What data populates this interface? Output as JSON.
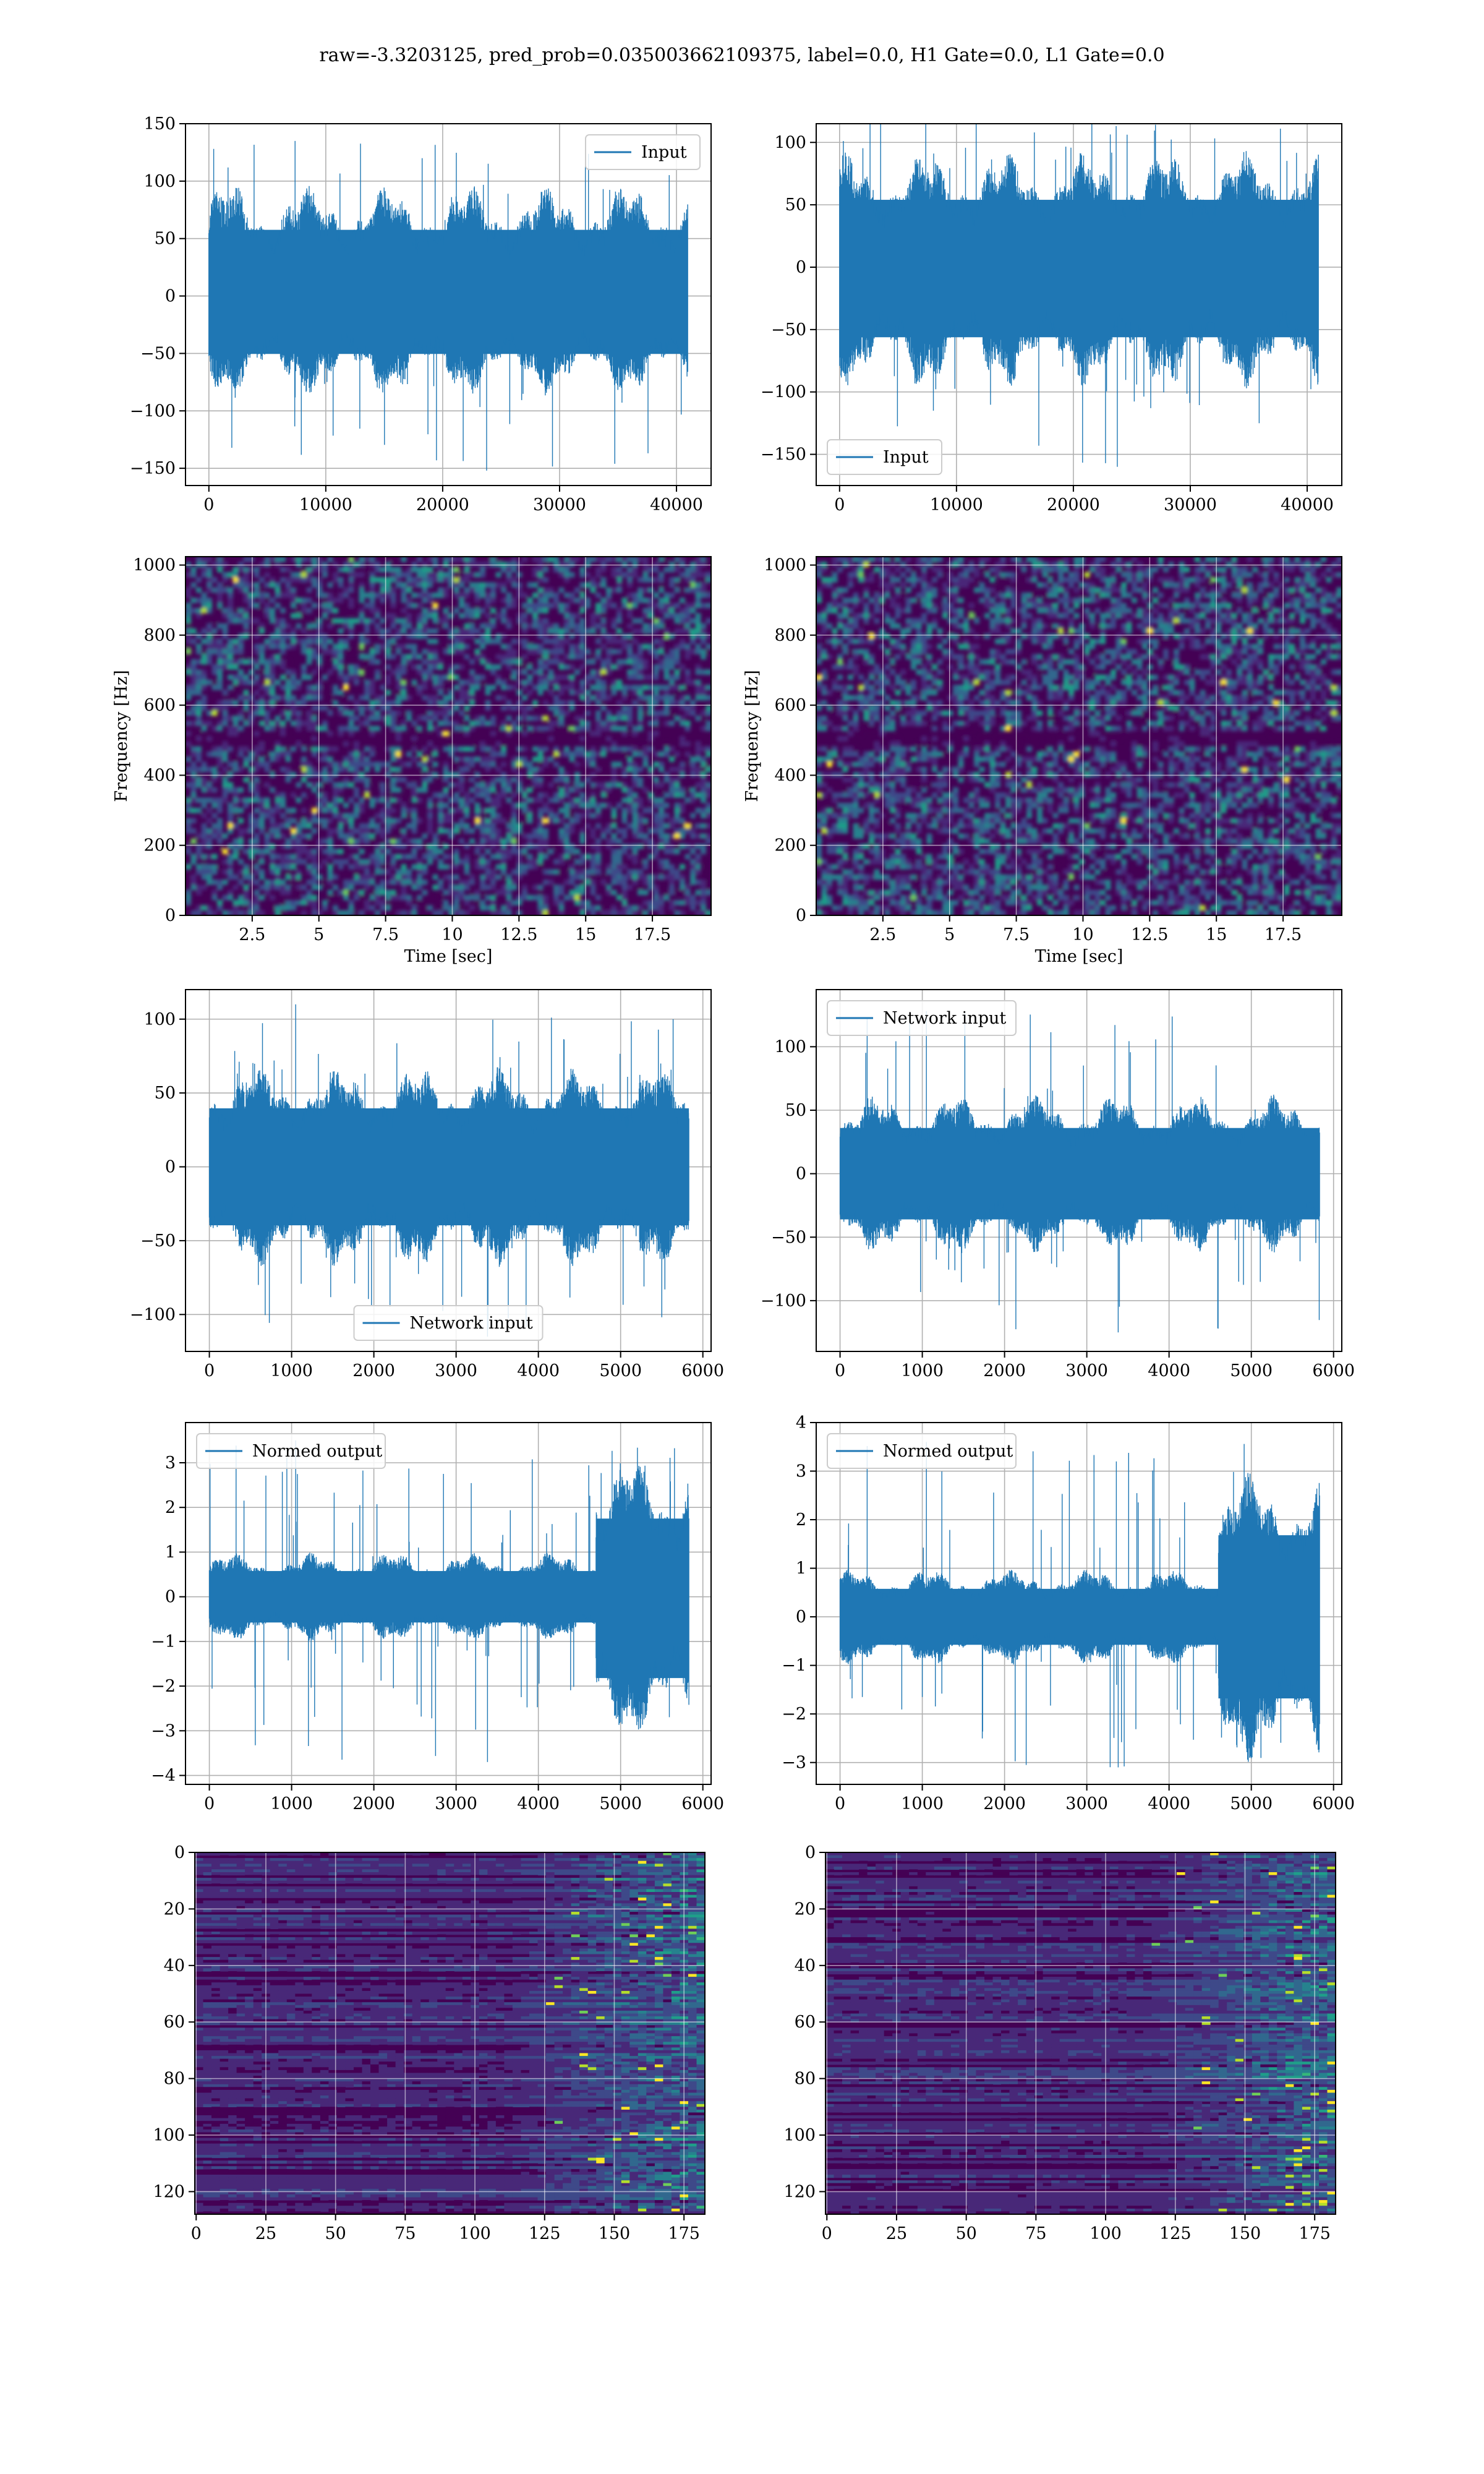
{
  "figure": {
    "title": "raw=-3.3203125, pred_prob=0.035003662109375, label=0.0, H1 Gate=0.0, L1 Gate=0.0"
  },
  "colors": {
    "line": "#1f77b4",
    "grid": "#b0b0b0",
    "viridis": [
      "#440154",
      "#482878",
      "#3e4989",
      "#31688e",
      "#26828e",
      "#1f9e89",
      "#35b779",
      "#6ece58",
      "#b5de2b",
      "#fde725"
    ]
  },
  "chart_data": [
    {
      "id": "h1-input",
      "type": "line",
      "title": "",
      "xlabel": "",
      "ylabel": "",
      "xlim": [
        -2000,
        42960
      ],
      "ylim": [
        -165,
        150
      ],
      "xticks": [
        0,
        10000,
        20000,
        30000,
        40000
      ],
      "yticks": [
        -150,
        -100,
        -50,
        0,
        50,
        100,
        150
      ],
      "grid": true,
      "legend": "upper right",
      "series": [
        {
          "name": "Input",
          "x_range": [
            0,
            40960
          ],
          "envelope_high": 80,
          "envelope_low": -70,
          "spike_high": 135,
          "spike_low": -152
        }
      ]
    },
    {
      "id": "l1-input",
      "type": "line",
      "title": "",
      "xlabel": "",
      "ylabel": "",
      "xlim": [
        -2000,
        42960
      ],
      "ylim": [
        -175,
        115
      ],
      "xticks": [
        0,
        10000,
        20000,
        30000,
        40000
      ],
      "yticks": [
        -150,
        -100,
        -50,
        0,
        50,
        100
      ],
      "grid": true,
      "legend": "lower left",
      "series": [
        {
          "name": "Input",
          "x_range": [
            0,
            40960
          ],
          "envelope_high": 75,
          "envelope_low": -78,
          "spike_high": 122,
          "spike_low": -160
        }
      ]
    },
    {
      "id": "h1-spectrogram",
      "type": "heatmap",
      "title": "",
      "xlabel": "Time [sec]",
      "ylabel": "Frequency [Hz]",
      "xlim": [
        0,
        19.7
      ],
      "ylim": [
        0,
        1024
      ],
      "xticks": [
        2.5,
        5.0,
        7.5,
        10.0,
        12.5,
        15.0,
        17.5
      ],
      "yticks": [
        0,
        200,
        400,
        600,
        800,
        1000
      ],
      "grid": true,
      "colormap": "viridis",
      "dark_band_hz": 500
    },
    {
      "id": "l1-spectrogram",
      "type": "heatmap",
      "title": "",
      "xlabel": "Time [sec]",
      "ylabel": "Frequency [Hz]",
      "xlim": [
        0,
        19.7
      ],
      "ylim": [
        0,
        1024
      ],
      "xticks": [
        2.5,
        5.0,
        7.5,
        10.0,
        12.5,
        15.0,
        17.5
      ],
      "yticks": [
        0,
        200,
        400,
        600,
        800,
        1000
      ],
      "grid": true,
      "colormap": "viridis",
      "dark_band_hz": 500
    },
    {
      "id": "h1-network-input",
      "type": "line",
      "title": "",
      "xlabel": "",
      "ylabel": "",
      "xlim": [
        -290,
        6100
      ],
      "ylim": [
        -125,
        120
      ],
      "xticks": [
        0,
        1000,
        2000,
        3000,
        4000,
        5000,
        6000
      ],
      "yticks": [
        -100,
        -50,
        0,
        50,
        100
      ],
      "grid": true,
      "legend": "lower center",
      "series": [
        {
          "name": "Network input",
          "x_range": [
            0,
            5830
          ],
          "envelope_high": 55,
          "envelope_low": -55,
          "spike_high": 110,
          "spike_low": -115
        }
      ]
    },
    {
      "id": "l1-network-input",
      "type": "line",
      "title": "",
      "xlabel": "",
      "ylabel": "",
      "xlim": [
        -290,
        6100
      ],
      "ylim": [
        -140,
        145
      ],
      "xticks": [
        0,
        1000,
        2000,
        3000,
        4000,
        5000,
        6000
      ],
      "yticks": [
        -100,
        -50,
        0,
        50,
        100
      ],
      "grid": true,
      "legend": "upper left",
      "series": [
        {
          "name": "Network input",
          "x_range": [
            0,
            5830
          ],
          "envelope_high": 50,
          "envelope_low": -50,
          "spike_high": 128,
          "spike_low": -125
        }
      ]
    },
    {
      "id": "h1-normed-output",
      "type": "line",
      "title": "",
      "xlabel": "",
      "ylabel": "",
      "xlim": [
        -290,
        6100
      ],
      "ylim": [
        -4.2,
        3.9
      ],
      "xticks": [
        0,
        1000,
        2000,
        3000,
        4000,
        5000,
        6000
      ],
      "yticks": [
        -4,
        -3,
        -2,
        -1,
        0,
        1,
        2,
        3
      ],
      "grid": true,
      "legend": "upper left",
      "series": [
        {
          "name": "Normed output",
          "x_range": [
            0,
            5830
          ],
          "envelope_high": 0.8,
          "envelope_low": -0.8,
          "burst_start": 4700,
          "burst_high": 2.5,
          "burst_low": -2.6,
          "spike_high": 3.5,
          "spike_low": -3.7
        }
      ]
    },
    {
      "id": "l1-normed-output",
      "type": "line",
      "title": "",
      "xlabel": "",
      "ylabel": "",
      "xlim": [
        -290,
        6100
      ],
      "ylim": [
        -3.45,
        4.0
      ],
      "xticks": [
        0,
        1000,
        2000,
        3000,
        4000,
        5000,
        6000
      ],
      "yticks": [
        -3,
        -2,
        -1,
        0,
        1,
        2,
        3,
        4
      ],
      "grid": true,
      "legend": "upper left",
      "series": [
        {
          "name": "Normed output",
          "x_range": [
            0,
            5830
          ],
          "envelope_high": 0.8,
          "envelope_low": -0.8,
          "burst_start": 4600,
          "burst_high": 2.4,
          "burst_low": -2.4,
          "spike_high": 3.6,
          "spike_low": -3.1
        }
      ]
    },
    {
      "id": "h1-feature-map",
      "type": "heatmap",
      "title": "",
      "xlabel": "",
      "ylabel": "",
      "xlim": [
        -0.5,
        182.5
      ],
      "ylim": [
        128,
        0
      ],
      "xticks": [
        0,
        25,
        50,
        75,
        100,
        125,
        150,
        175
      ],
      "yticks": [
        0,
        20,
        40,
        60,
        80,
        100,
        120
      ],
      "grid": true,
      "colormap": "viridis",
      "active_from": 112
    },
    {
      "id": "l1-feature-map",
      "type": "heatmap",
      "title": "",
      "xlabel": "",
      "ylabel": "",
      "xlim": [
        -0.5,
        182.5
      ],
      "ylim": [
        128,
        0
      ],
      "xticks": [
        0,
        25,
        50,
        75,
        100,
        125,
        150,
        175
      ],
      "yticks": [
        0,
        20,
        40,
        60,
        80,
        100,
        120
      ],
      "grid": true,
      "colormap": "viridis",
      "active_from": 115
    }
  ]
}
